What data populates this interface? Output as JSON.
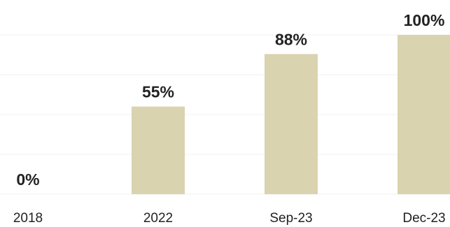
{
  "chart_data": {
    "type": "bar",
    "categories": [
      "2018",
      "2022",
      "Sep-23",
      "Dec-23"
    ],
    "values": [
      0,
      55,
      88,
      100
    ],
    "data_labels": [
      "0%",
      "55%",
      "88%",
      "100%"
    ],
    "ylim": [
      0,
      100
    ],
    "grid": true,
    "legend": "none",
    "colors": {
      "bar": "#d9d3af",
      "text": "#222222",
      "grid": "#f0f0f0"
    }
  }
}
